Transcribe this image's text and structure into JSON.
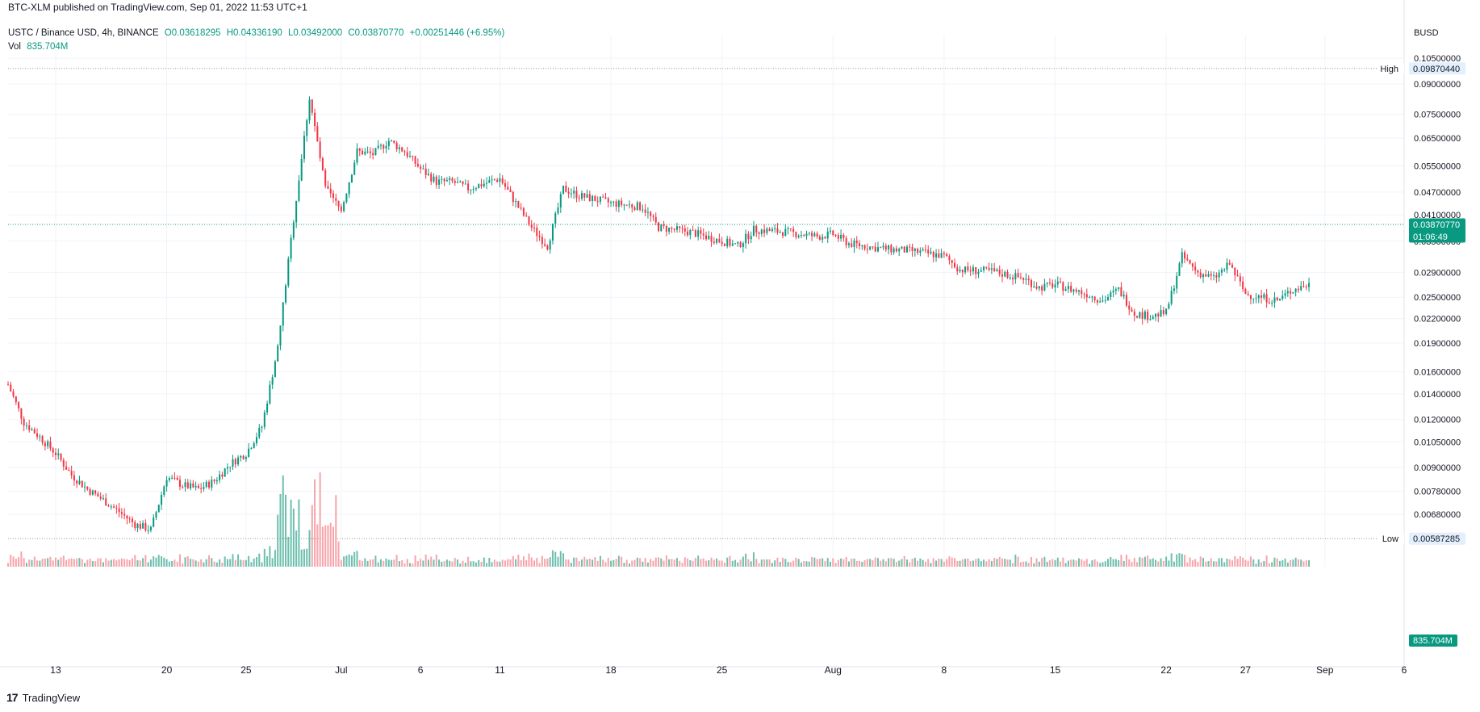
{
  "publisher": "BTC-XLM published on TradingView.com, Sep 01, 2022 11:53 UTC+1",
  "symbol_line": "USTC / Binance USD, 4h, BINANCE",
  "ohlc": {
    "open": "O0.03618295",
    "high": "H0.04336190",
    "low": "L0.03492000",
    "close": "C0.03870770",
    "change": "+0.00251446 (+6.95%)"
  },
  "volume": {
    "label": "Vol",
    "value": "835.704M"
  },
  "currency": "BUSD",
  "footer": {
    "logo": "17",
    "brand": "TradingView"
  },
  "colors": {
    "up": "#089981",
    "down": "#f23645",
    "up_vol": "#6fbfae",
    "down_vol": "#f7a5ab",
    "grid": "#f0f3fa"
  },
  "chart_data": {
    "type": "candlestick",
    "scale": "log",
    "timeframe": "4h",
    "y_ticks": [
      "0.10500000",
      "0.09000000",
      "0.07500000",
      "0.06500000",
      "0.05500000",
      "0.04700000",
      "0.04100000",
      "0.03500000",
      "0.02900000",
      "0.02500000",
      "0.02200000",
      "0.01900000",
      "0.01600000",
      "0.01400000",
      "0.01200000",
      "0.01050000",
      "0.00900000",
      "0.00780000",
      "0.00680000"
    ],
    "x_ticks": [
      "13",
      "20",
      "25",
      "Jul",
      "6",
      "11",
      "18",
      "25",
      "Aug",
      "8",
      "15",
      "22",
      "27",
      "Sep",
      "6"
    ],
    "high_marker": {
      "label": "High",
      "value": "0.09870440"
    },
    "low_marker": {
      "label": "Low",
      "value": "0.00587285"
    },
    "last_price": {
      "value": "0.03870770",
      "countdown": "01:06:49"
    },
    "last_volume": "835.704M",
    "price_path": [
      [
        "Jun 10",
        0.0148
      ],
      [
        "Jun 11",
        0.0118
      ],
      [
        "Jun 12",
        0.0108
      ],
      [
        "Jun 13",
        0.0098
      ],
      [
        "Jun 14",
        0.0086
      ],
      [
        "Jun 15",
        0.0079
      ],
      [
        "Jun 16",
        0.0074
      ],
      [
        "Jun 17",
        0.0069
      ],
      [
        "Jun 18",
        0.0064
      ],
      [
        "Jun 19",
        0.0062
      ],
      [
        "Jun 20",
        0.0085
      ],
      [
        "Jun 21",
        0.0081
      ],
      [
        "Jun 22",
        0.0079
      ],
      [
        "Jun 23",
        0.0083
      ],
      [
        "Jun 24",
        0.0092
      ],
      [
        "Jun 25",
        0.0098
      ],
      [
        "Jun 26",
        0.0115
      ],
      [
        "Jun 27",
        0.0185
      ],
      [
        "Jun 28",
        0.04
      ],
      [
        "Jun 29",
        0.083
      ],
      [
        "Jun 30",
        0.048
      ],
      [
        "Jul 1",
        0.042
      ],
      [
        "Jul 2",
        0.06
      ],
      [
        "Jul 3",
        0.059
      ],
      [
        "Jul 4",
        0.064
      ],
      [
        "Jul 5",
        0.06
      ],
      [
        "Jul 6",
        0.054
      ],
      [
        "Jul 7",
        0.05
      ],
      [
        "Jul 8",
        0.05
      ],
      [
        "Jul 9",
        0.048
      ],
      [
        "Jul 11",
        0.051
      ],
      [
        "Jul 12",
        0.044
      ],
      [
        "Jul 13",
        0.038
      ],
      [
        "Jul 14",
        0.034
      ],
      [
        "Jul 15",
        0.048
      ],
      [
        "Jul 16",
        0.046
      ],
      [
        "Jul 18",
        0.044
      ],
      [
        "Jul 20",
        0.043
      ],
      [
        "Jul 21",
        0.038
      ],
      [
        "Jul 23",
        0.037
      ],
      [
        "Jul 25",
        0.035
      ],
      [
        "Jul 26",
        0.034
      ],
      [
        "Jul 27",
        0.0375
      ],
      [
        "Jul 29",
        0.037
      ],
      [
        "Jul 31",
        0.036
      ],
      [
        "Aug 1",
        0.0365
      ],
      [
        "Aug 2",
        0.0345
      ],
      [
        "Aug 4",
        0.0335
      ],
      [
        "Aug 6",
        0.033
      ],
      [
        "Aug 8",
        0.032
      ],
      [
        "Aug 9",
        0.0295
      ],
      [
        "Aug 11",
        0.0292
      ],
      [
        "Aug 13",
        0.028
      ],
      [
        "Aug 14",
        0.0265
      ],
      [
        "Aug 15",
        0.027
      ],
      [
        "Aug 17",
        0.0255
      ],
      [
        "Aug 18",
        0.0245
      ],
      [
        "Aug 19",
        0.0262
      ],
      [
        "Aug 20",
        0.0227
      ],
      [
        "Aug 21",
        0.0223
      ],
      [
        "Aug 22",
        0.0228
      ],
      [
        "Aug 23",
        0.032
      ],
      [
        "Aug 24",
        0.029
      ],
      [
        "Aug 25",
        0.028
      ],
      [
        "Aug 26",
        0.0305
      ],
      [
        "Aug 27",
        0.0255
      ],
      [
        "Aug 28",
        0.025
      ],
      [
        "Aug 29",
        0.0245
      ],
      [
        "Aug 30",
        0.0262
      ],
      [
        "Aug 31",
        0.027
      ],
      [
        "Sep 1",
        0.0387
      ]
    ]
  }
}
